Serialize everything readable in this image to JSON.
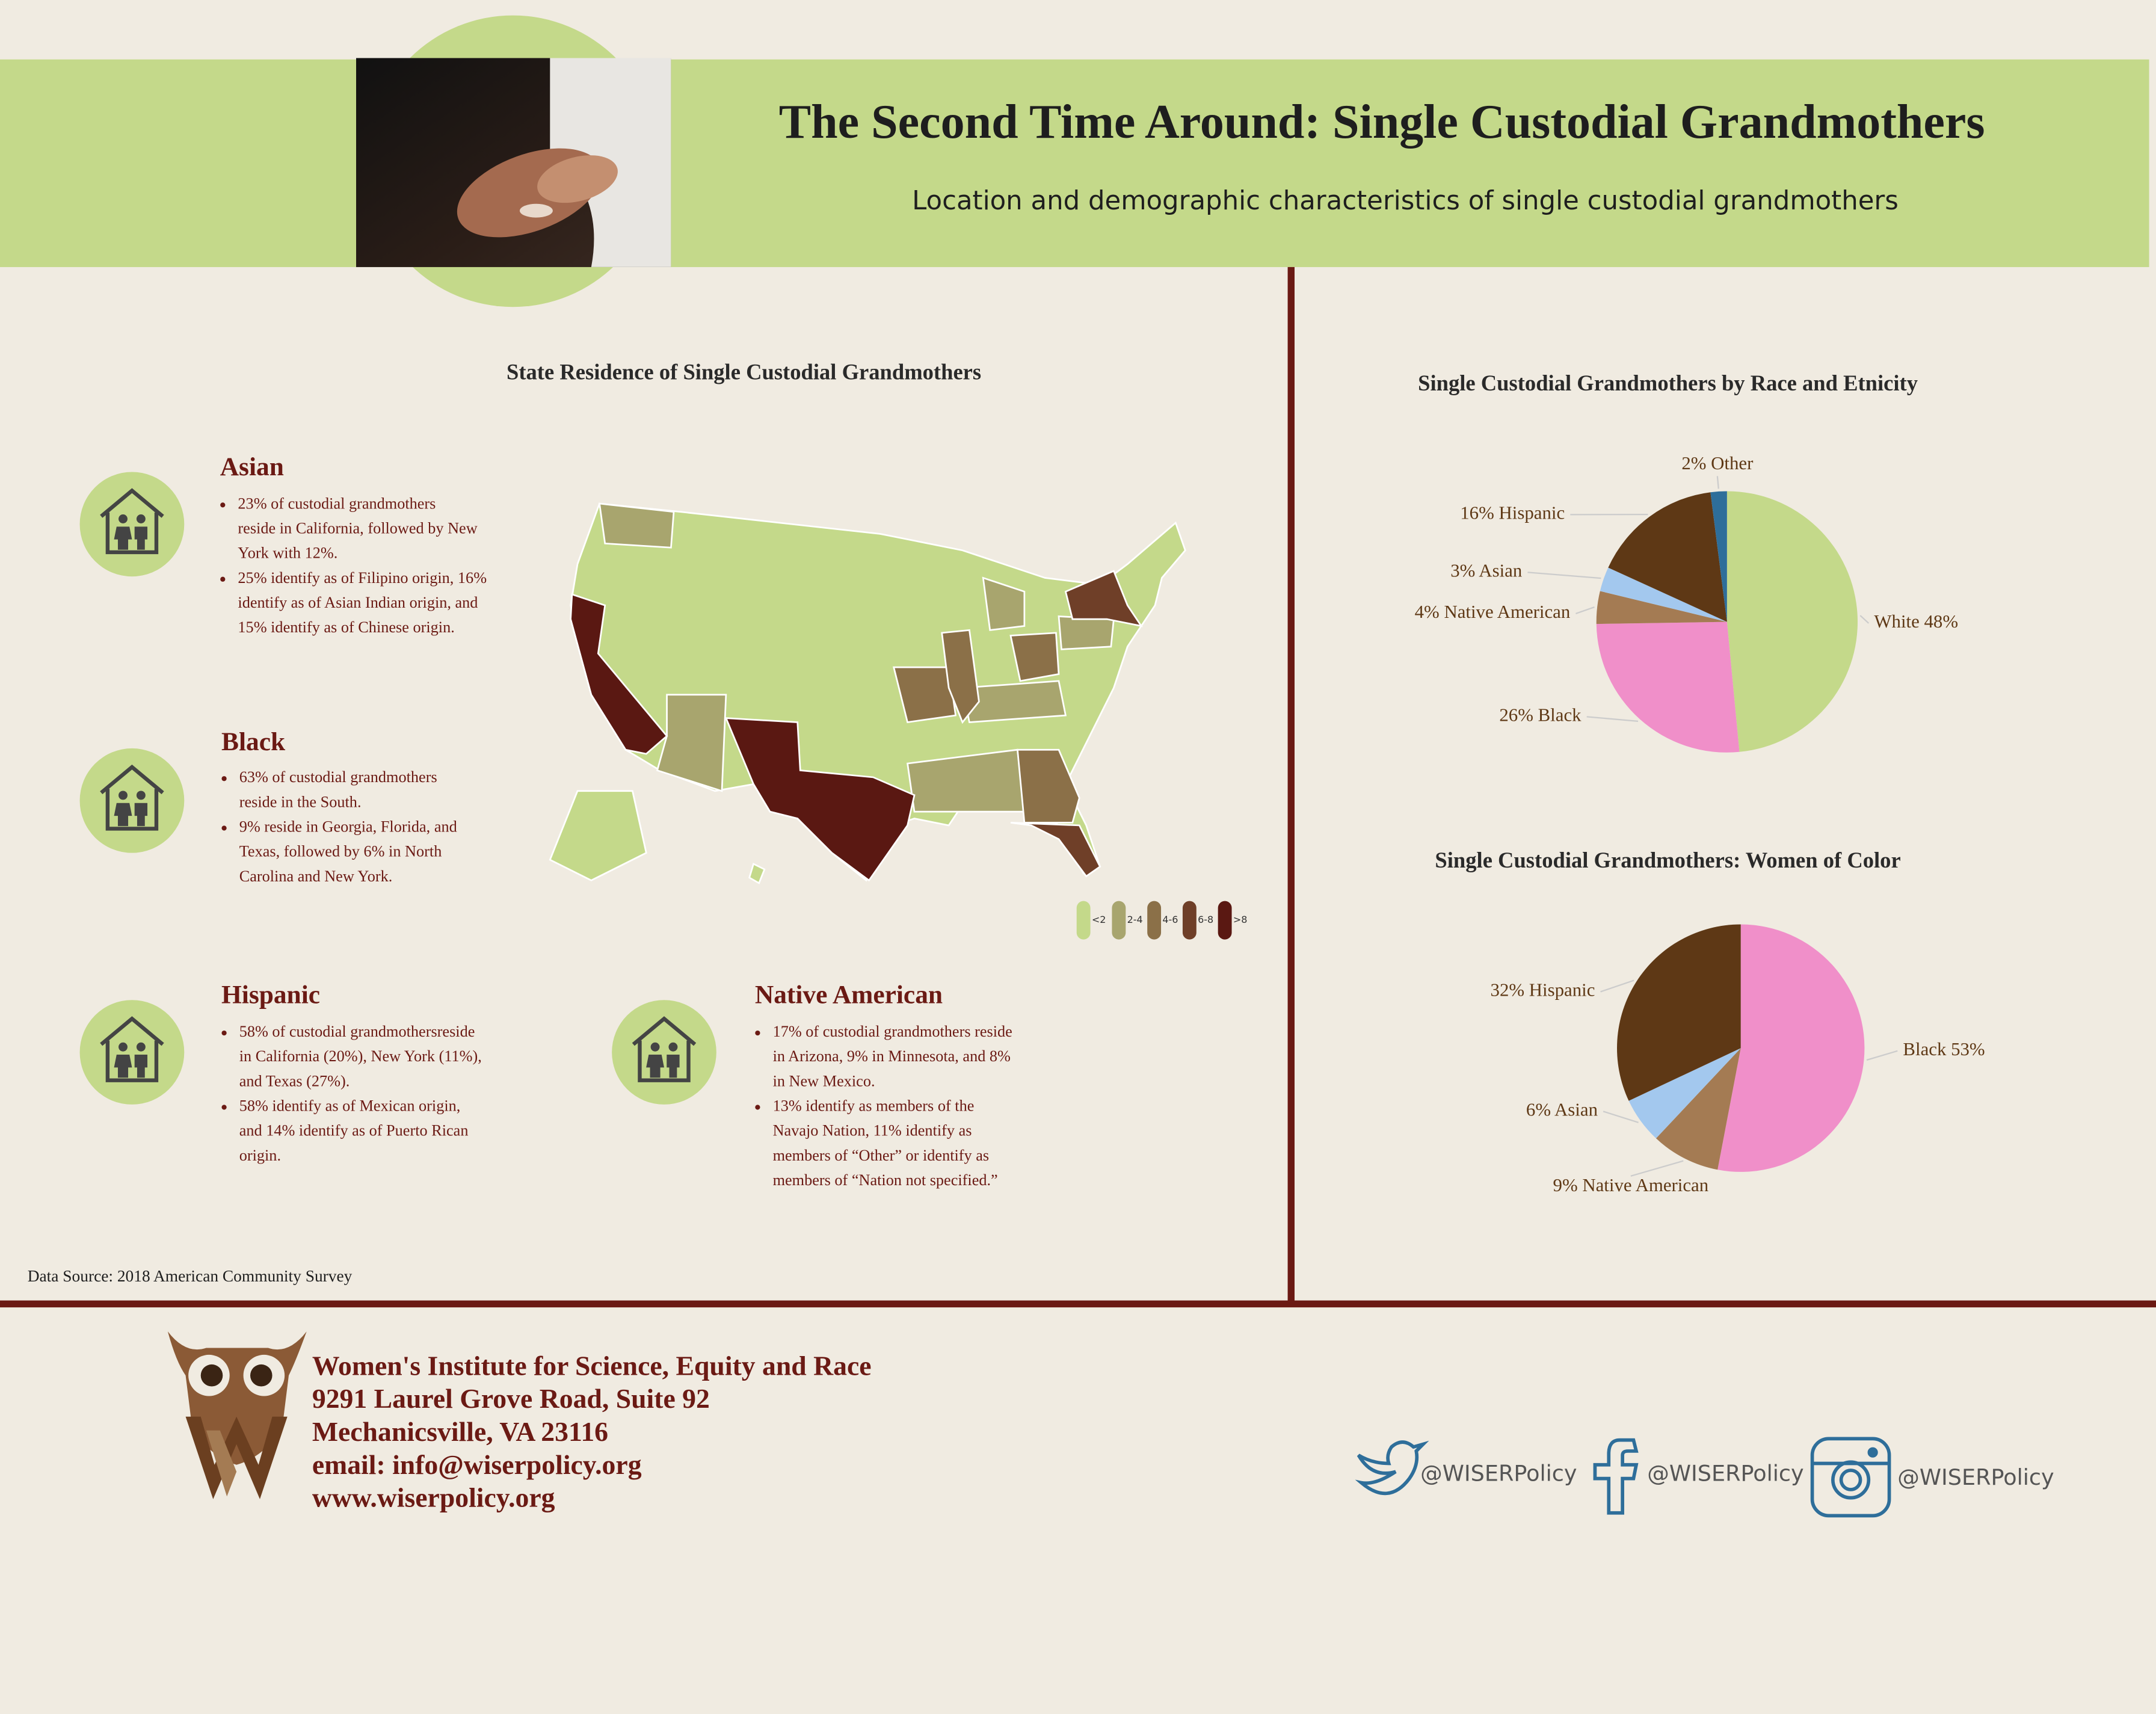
{
  "header": {
    "title": "The Second Time Around: Single Custodial Grandmothers",
    "subtitle": "Location and demographic characteristics of single custodial grandmothers"
  },
  "map": {
    "title": "State Residence of Single Custodial Grandmothers",
    "legend": [
      {
        "label": "<2",
        "color": "#c4d98a"
      },
      {
        "label": "2-4",
        "color": "#a8a56e"
      },
      {
        "label": "4-6",
        "color": "#8b7048"
      },
      {
        "label": "6-8",
        "color": "#6f3f28"
      },
      {
        "label": ">8",
        "color": "#5a1812"
      }
    ]
  },
  "sections": [
    {
      "title": "Asian",
      "bullets": [
        [
          "23% of custodial grandmothers",
          "reside in California, followed by New",
          "York with 12%."
        ],
        [
          "25% identify as of Filipino origin, 16%",
          "identify as of Asian Indian origin, and",
          "15% identify as of Chinese origin."
        ]
      ]
    },
    {
      "title": "Black",
      "bullets": [
        [
          "63% of custodial grandmothers",
          "reside in the South."
        ],
        [
          "9% reside in Georgia, Florida, and",
          "Texas, followed by 6% in North",
          "Carolina and New York."
        ]
      ]
    },
    {
      "title": "Hispanic",
      "bullets": [
        [
          "58% of custodial grandmothersreside",
          "in California (20%), New York (11%),",
          "and Texas (27%)."
        ],
        [
          "58% identify as of Mexican origin,",
          "and 14% identify as of Puerto Rican",
          "origin."
        ]
      ]
    },
    {
      "title": "Native American",
      "bullets": [
        [
          "17% of custodial grandmothers reside",
          "in Arizona, 9% in Minnesota, and 8%",
          "in New Mexico."
        ],
        [
          "13% identify as members of the",
          "Navajo Nation, 11% identify as",
          "members of “Other” or identify as",
          "members of “Nation not specified.”"
        ]
      ]
    }
  ],
  "source": "Data Source: 2018 American Community Survey",
  "chart_data": [
    {
      "type": "pie",
      "title": "Single Custodial Grandmothers by Race and Etnicity",
      "categories": [
        "White",
        "Black",
        "Native American",
        "Asian",
        "Hispanic",
        "Other"
      ],
      "values": [
        48,
        26,
        4,
        3,
        16,
        2
      ],
      "value_labels": [
        "White 48%",
        "26% Black",
        "4% Native American",
        "3% Asian",
        "16% Hispanic",
        "2% Other"
      ],
      "colors": [
        "#c4d98a",
        "#f08fc9",
        "#a47b53",
        "#a3c8ee",
        "#5e3815",
        "#2e6e9a"
      ]
    },
    {
      "type": "pie",
      "title": "Single Custodial Grandmothers: Women of Color",
      "categories": [
        "Black",
        "Native American",
        "Asian",
        "Hispanic"
      ],
      "values": [
        53,
        9,
        6,
        32
      ],
      "value_labels": [
        "Black 53%",
        "9% Native American",
        "6% Asian",
        "32% Hispanic"
      ],
      "colors": [
        "#f08fc9",
        "#a47b53",
        "#a3c8ee",
        "#5e3815"
      ]
    }
  ],
  "footer": {
    "lines": [
      "Women's Institute for Science, Equity and Race",
      "9291 Laurel Grove Road, Suite 92",
      "Mechanicsville, VA 23116",
      "email: info@wiserpolicy.org",
      "www.wiserpolicy.org"
    ],
    "social": [
      "@WISERPolicy",
      "@WISERPolicy",
      "@WISERPolicy"
    ]
  }
}
